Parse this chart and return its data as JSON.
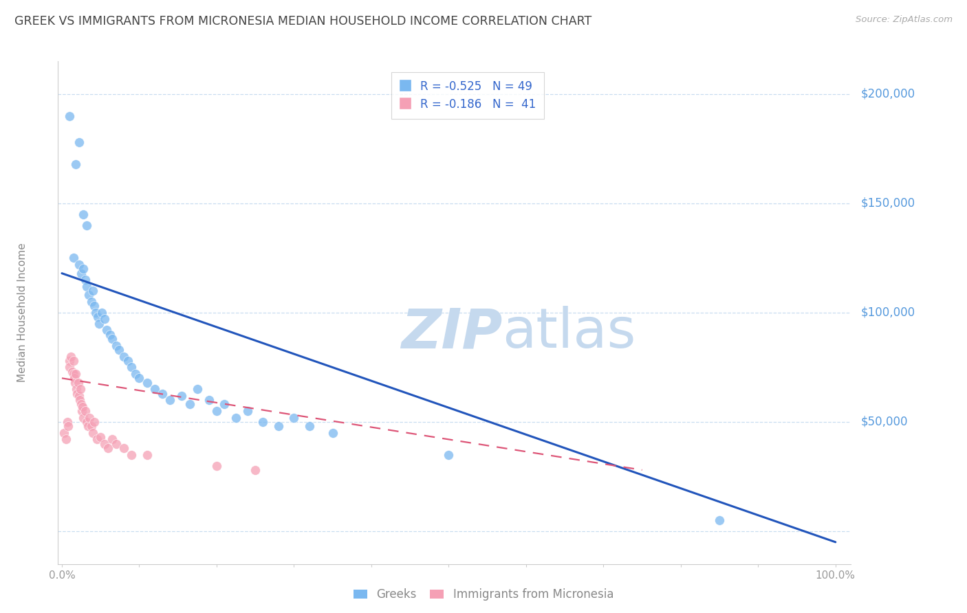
{
  "title": "GREEK VS IMMIGRANTS FROM MICRONESIA MEDIAN HOUSEHOLD INCOME CORRELATION CHART",
  "source": "Source: ZipAtlas.com",
  "ylabel": "Median Household Income",
  "yticks": [
    0,
    50000,
    100000,
    150000,
    200000
  ],
  "ytick_labels": [
    "",
    "$50,000",
    "$100,000",
    "$150,000",
    "$200,000"
  ],
  "ymax": 215000,
  "ymin": -15000,
  "xmin": -0.005,
  "xmax": 1.02,
  "blue_color": "#7ab8f0",
  "pink_color": "#f5a0b5",
  "blue_line_color": "#2255bb",
  "pink_line_color": "#dd5577",
  "title_color": "#444444",
  "ylabel_color": "#888888",
  "ytick_color": "#5599dd",
  "grid_color": "#c8ddf0",
  "legend_r_blue": "R = -0.525",
  "legend_n_blue": "N = 49",
  "legend_r_pink": "R = -0.186",
  "legend_n_pink": "N = 41",
  "blue_scatter_x": [
    0.01,
    0.018,
    0.022,
    0.028,
    0.032,
    0.015,
    0.022,
    0.025,
    0.028,
    0.03,
    0.032,
    0.035,
    0.038,
    0.04,
    0.042,
    0.044,
    0.046,
    0.048,
    0.052,
    0.055,
    0.058,
    0.062,
    0.065,
    0.07,
    0.074,
    0.08,
    0.085,
    0.09,
    0.095,
    0.1,
    0.11,
    0.12,
    0.13,
    0.14,
    0.155,
    0.165,
    0.175,
    0.19,
    0.2,
    0.21,
    0.225,
    0.24,
    0.26,
    0.28,
    0.3,
    0.32,
    0.35,
    0.5,
    0.85
  ],
  "blue_scatter_y": [
    190000,
    168000,
    178000,
    145000,
    140000,
    125000,
    122000,
    118000,
    120000,
    115000,
    112000,
    108000,
    105000,
    110000,
    103000,
    100000,
    98000,
    95000,
    100000,
    97000,
    92000,
    90000,
    88000,
    85000,
    83000,
    80000,
    78000,
    75000,
    72000,
    70000,
    68000,
    65000,
    63000,
    60000,
    62000,
    58000,
    65000,
    60000,
    55000,
    58000,
    52000,
    55000,
    50000,
    48000,
    52000,
    48000,
    45000,
    35000,
    5000
  ],
  "pink_scatter_x": [
    0.003,
    0.005,
    0.007,
    0.008,
    0.01,
    0.01,
    0.012,
    0.013,
    0.015,
    0.015,
    0.016,
    0.017,
    0.018,
    0.019,
    0.02,
    0.021,
    0.022,
    0.023,
    0.024,
    0.025,
    0.026,
    0.027,
    0.028,
    0.03,
    0.032,
    0.034,
    0.036,
    0.038,
    0.04,
    0.042,
    0.045,
    0.05,
    0.055,
    0.06,
    0.065,
    0.07,
    0.08,
    0.09,
    0.11,
    0.2,
    0.25
  ],
  "pink_scatter_y": [
    45000,
    42000,
    50000,
    48000,
    78000,
    75000,
    80000,
    73000,
    78000,
    72000,
    70000,
    68000,
    72000,
    65000,
    63000,
    68000,
    62000,
    60000,
    65000,
    58000,
    55000,
    57000,
    52000,
    55000,
    50000,
    48000,
    52000,
    48000,
    45000,
    50000,
    42000,
    43000,
    40000,
    38000,
    42000,
    40000,
    38000,
    35000,
    35000,
    30000,
    28000
  ],
  "blue_trendline_x": [
    0.0,
    1.0
  ],
  "blue_trendline_y": [
    118000,
    -5000
  ],
  "pink_trendline_x": [
    0.0,
    0.75
  ],
  "pink_trendline_y": [
    70000,
    28000
  ],
  "watermark_zip": "ZIP",
  "watermark_atlas": "atlas",
  "watermark_color": "#c5d9ee",
  "background_color": "#ffffff",
  "spine_color": "#cccccc"
}
